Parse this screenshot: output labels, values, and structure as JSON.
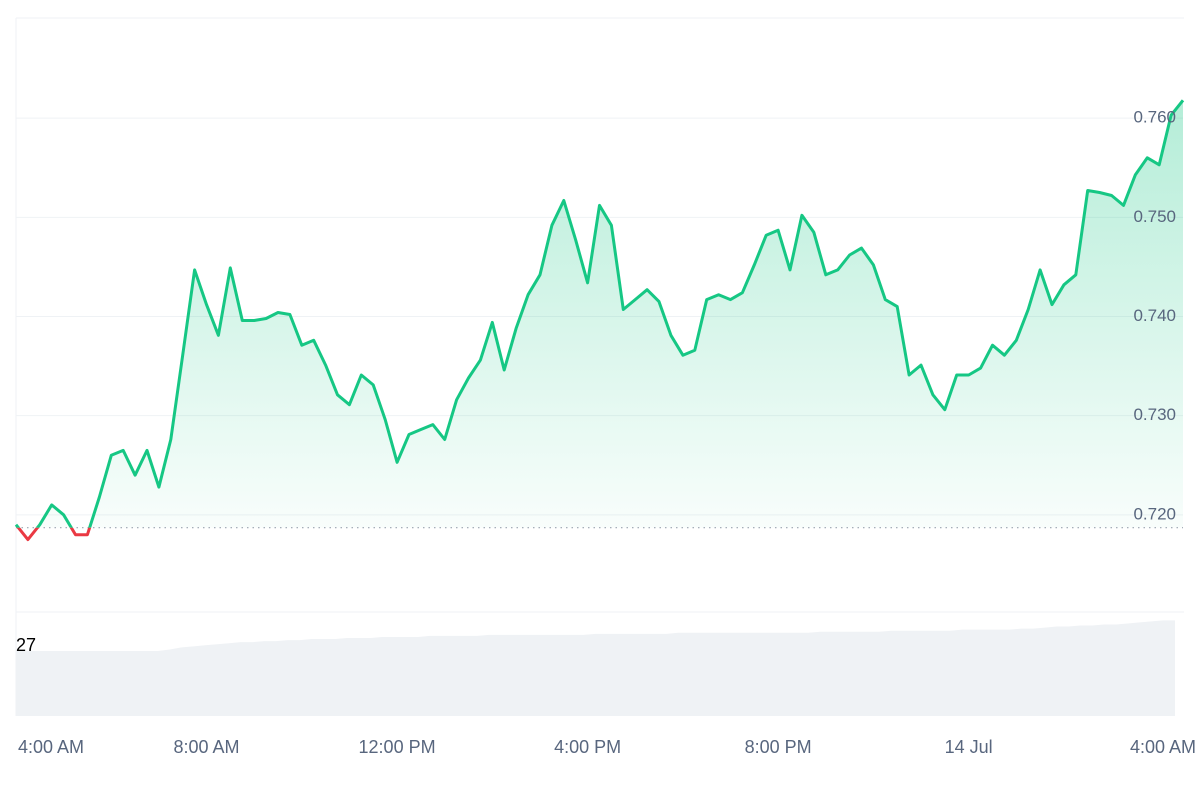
{
  "chart_data": {
    "type": "line",
    "categories": [
      "4:00 AM",
      null,
      null,
      null,
      null,
      null,
      null,
      null,
      null,
      null,
      null,
      null,
      null,
      null,
      null,
      null,
      "8:00 AM",
      null,
      null,
      null,
      null,
      null,
      null,
      null,
      null,
      null,
      null,
      null,
      null,
      null,
      null,
      null,
      "12:00 PM",
      null,
      null,
      null,
      null,
      null,
      null,
      null,
      null,
      null,
      null,
      null,
      null,
      null,
      null,
      null,
      "4:00 PM",
      null,
      null,
      null,
      null,
      null,
      null,
      null,
      null,
      null,
      null,
      null,
      null,
      null,
      null,
      null,
      "8:00 PM",
      null,
      null,
      null,
      null,
      null,
      null,
      null,
      null,
      null,
      null,
      null,
      null,
      null,
      null,
      null,
      "14 Jul",
      null,
      null,
      null,
      null,
      null,
      null,
      null,
      null,
      null,
      null,
      null,
      null,
      null,
      null,
      null,
      "4:00 AM",
      null,
      null
    ],
    "values": [
      0.719,
      0.7175,
      0.719,
      0.721,
      0.72,
      0.718,
      0.718,
      0.7218,
      0.726,
      0.7265,
      0.724,
      0.7265,
      0.7228,
      0.7276,
      0.7361,
      0.7447,
      0.7412,
      0.7381,
      0.7449,
      0.7396,
      0.7396,
      0.7398,
      0.7404,
      0.7402,
      0.7371,
      0.7376,
      0.7351,
      0.7321,
      0.7311,
      0.7341,
      0.7331,
      0.7296,
      0.7253,
      0.7281,
      0.7286,
      0.7291,
      0.7276,
      0.7316,
      0.7338,
      0.7356,
      0.7394,
      0.7346,
      0.7388,
      0.7422,
      0.7442,
      0.7492,
      0.7517,
      0.7477,
      0.7434,
      0.7512,
      0.7492,
      0.7407,
      0.7417,
      0.7427,
      0.7415,
      0.7381,
      0.7361,
      0.7366,
      0.7417,
      0.7422,
      0.7417,
      0.7424,
      0.7452,
      0.7482,
      0.7487,
      0.7447,
      0.7502,
      0.7485,
      0.7442,
      0.7447,
      0.7462,
      0.7469,
      0.7452,
      0.7417,
      0.741,
      0.7341,
      0.7351,
      0.7321,
      0.7306,
      0.7341,
      0.7341,
      0.7348,
      0.7371,
      0.7361,
      0.7376,
      0.7407,
      0.7447,
      0.7412,
      0.7432,
      0.7442,
      0.7527,
      0.7525,
      0.7522,
      0.7512,
      0.7543,
      0.756,
      0.7553,
      0.7603,
      0.7618
    ],
    "baseline": 0.7187,
    "color_up": "#16c784",
    "color_down": "#ea3943",
    "ylim": [
      0.7102,
      0.7701
    ],
    "yticks": [
      {
        "value": 0.72,
        "label": "0.720"
      },
      {
        "value": 0.73,
        "label": "0.730"
      },
      {
        "value": 0.74,
        "label": "0.740"
      },
      {
        "value": 0.75,
        "label": "0.750"
      },
      {
        "value": 0.76,
        "label": "0.760"
      }
    ],
    "grid": true,
    "volume": {
      "label": "27",
      "color": "#eff2f5",
      "ylim": [
        0,
        100
      ],
      "values": [
        62.5,
        62.5,
        62.5,
        62.5,
        62.5,
        62.5,
        62.5,
        62.5,
        62.5,
        62.5,
        62.5,
        62.5,
        62.5,
        64,
        66,
        67,
        68,
        69,
        70,
        71,
        71,
        72,
        72,
        73,
        73,
        74,
        74,
        74,
        75,
        75,
        75,
        76,
        76,
        76,
        76,
        77,
        77,
        77,
        77,
        77,
        78,
        78,
        78,
        78,
        78,
        78,
        78,
        78,
        78,
        79,
        79,
        79,
        79,
        79,
        79,
        79,
        80,
        80,
        80,
        80,
        80,
        80,
        80,
        80,
        80,
        80,
        80,
        80,
        81,
        81,
        81,
        81,
        81,
        81,
        82,
        82,
        82,
        82,
        82,
        82,
        83,
        83,
        83,
        83,
        83,
        84,
        84,
        85,
        86,
        86,
        87,
        87,
        88,
        88,
        89,
        90,
        91,
        92,
        92
      ]
    }
  }
}
